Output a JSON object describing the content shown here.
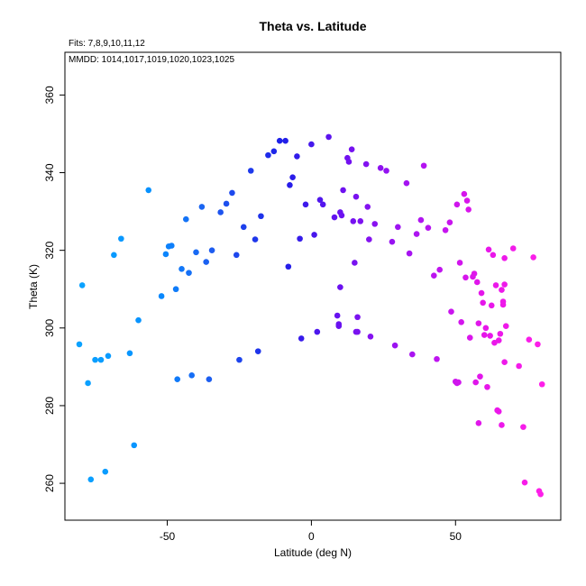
{
  "chart_data": {
    "type": "scatter",
    "title": "Theta vs. Latitude",
    "subtitle": "Fits: 7,8,9,10,11,12",
    "annotation": "MMDD: 1014,1017,1019,1020,1023,1025",
    "xlabel": "Latitude (deg N)",
    "ylabel": "Theta (K)",
    "xlim": [
      -85.5,
      86.5
    ],
    "ylim": [
      250.5,
      371
    ],
    "xticks": [
      -50,
      0,
      50
    ],
    "xtick_labels": [
      "-50",
      "0",
      "50"
    ],
    "yticks": [
      260,
      280,
      300,
      320,
      340,
      360
    ],
    "ytick_labels": [
      "260",
      "280",
      "300",
      "320",
      "340",
      "360"
    ],
    "grid": false,
    "legend": "none",
    "color_scale": {
      "by": "latitude",
      "stops": [
        {
          "lat": -80,
          "color": "#0ba2ff"
        },
        {
          "lat": -55,
          "color": "#0790ff"
        },
        {
          "lat": -35,
          "color": "#1d5df0"
        },
        {
          "lat": -10,
          "color": "#1e1fe8"
        },
        {
          "lat": 10,
          "color": "#6b11f0"
        },
        {
          "lat": 40,
          "color": "#b614f1"
        },
        {
          "lat": 60,
          "color": "#e616ea"
        },
        {
          "lat": 80,
          "color": "#fe1fe9"
        }
      ]
    },
    "points": [
      [
        -80.5,
        295.8
      ],
      [
        -79.5,
        311
      ],
      [
        -77.5,
        285.8
      ],
      [
        -76.5,
        261
      ],
      [
        -75,
        291.8
      ],
      [
        -73,
        291.8
      ],
      [
        -71.5,
        263
      ],
      [
        -70.5,
        292.8
      ],
      [
        -68.5,
        318.8
      ],
      [
        -66,
        323
      ],
      [
        -63,
        293.5
      ],
      [
        -61.5,
        269.8
      ],
      [
        -60,
        302
      ],
      [
        -56.5,
        335.5
      ],
      [
        -52,
        308.2
      ],
      [
        -50.5,
        319
      ],
      [
        -49.5,
        321
      ],
      [
        -48.5,
        321.2
      ],
      [
        -47,
        310
      ],
      [
        -46.5,
        286.8
      ],
      [
        -45,
        315.2
      ],
      [
        -43.5,
        328
      ],
      [
        -42.5,
        314.2
      ],
      [
        -41.5,
        287.8
      ],
      [
        -40,
        319.5
      ],
      [
        -38,
        331.2
      ],
      [
        -36.5,
        317
      ],
      [
        -35.5,
        286.8
      ],
      [
        -34.5,
        320
      ],
      [
        -31.5,
        329.8
      ],
      [
        -29.5,
        332
      ],
      [
        -27.5,
        334.8
      ],
      [
        -26,
        318.8
      ],
      [
        -25,
        291.8
      ],
      [
        -23.5,
        326
      ],
      [
        -21,
        340.5
      ],
      [
        -19.5,
        322.8
      ],
      [
        -18.5,
        294
      ],
      [
        -17.5,
        328.8
      ],
      [
        -15,
        344.5
      ],
      [
        -13,
        345.5
      ],
      [
        -11,
        348.2
      ],
      [
        -9,
        348.2
      ],
      [
        -8,
        315.8
      ],
      [
        -7.5,
        336.8
      ],
      [
        -6.5,
        338.8
      ],
      [
        -5,
        344.2
      ],
      [
        -4,
        323
      ],
      [
        -3.5,
        297.3
      ],
      [
        -2,
        331.8
      ],
      [
        0,
        347.3
      ],
      [
        1,
        324
      ],
      [
        2,
        299
      ],
      [
        3,
        333
      ],
      [
        4,
        331.8
      ],
      [
        6,
        349.2
      ],
      [
        8,
        328.5
      ],
      [
        9,
        303.2
      ],
      [
        9.5,
        301
      ],
      [
        9.5,
        300.5
      ],
      [
        10,
        310.5
      ],
      [
        10,
        329.8
      ],
      [
        10.5,
        329
      ],
      [
        11,
        335.5
      ],
      [
        12.5,
        343.8
      ],
      [
        13,
        342.8
      ],
      [
        14,
        346
      ],
      [
        14.5,
        327.5
      ],
      [
        15,
        316.8
      ],
      [
        15.5,
        333.8
      ],
      [
        15.5,
        299
      ],
      [
        16,
        302.8
      ],
      [
        16,
        299
      ],
      [
        17,
        327.5
      ],
      [
        19,
        342.2
      ],
      [
        19.5,
        331.2
      ],
      [
        20,
        322.8
      ],
      [
        20.5,
        297.8
      ],
      [
        22,
        326.8
      ],
      [
        24,
        341.2
      ],
      [
        26,
        340.5
      ],
      [
        28,
        322.2
      ],
      [
        29,
        295.5
      ],
      [
        30,
        326
      ],
      [
        33,
        337.3
      ],
      [
        34,
        319.2
      ],
      [
        35,
        293.2
      ],
      [
        36.5,
        324.2
      ],
      [
        38,
        327.8
      ],
      [
        39,
        341.8
      ],
      [
        40.5,
        325.8
      ],
      [
        42.5,
        313.5
      ],
      [
        43.5,
        292
      ],
      [
        44.5,
        315
      ],
      [
        46.5,
        325.2
      ],
      [
        48,
        327.2
      ],
      [
        48.5,
        304.2
      ],
      [
        50,
        286.2
      ],
      [
        50.5,
        331.8
      ],
      [
        50.5,
        285.8
      ],
      [
        51,
        286
      ],
      [
        51.5,
        316.8
      ],
      [
        52,
        301.5
      ],
      [
        53,
        334.5
      ],
      [
        53.5,
        313
      ],
      [
        54,
        332.8
      ],
      [
        54.5,
        330.5
      ],
      [
        55,
        297.5
      ],
      [
        56,
        313.2
      ],
      [
        56.5,
        314
      ],
      [
        57,
        286
      ],
      [
        57.5,
        311.8
      ],
      [
        58,
        275.5
      ],
      [
        58,
        301.2
      ],
      [
        58.5,
        287.5
      ],
      [
        59,
        309
      ],
      [
        59.5,
        306.5
      ],
      [
        60,
        298.2
      ],
      [
        60.5,
        300
      ],
      [
        61,
        284.8
      ],
      [
        61.5,
        320.2
      ],
      [
        62,
        298
      ],
      [
        62.5,
        305.8
      ],
      [
        63,
        318.8
      ],
      [
        63.5,
        296.2
      ],
      [
        64,
        311
      ],
      [
        64.5,
        278.8
      ],
      [
        65,
        296.8
      ],
      [
        65,
        278.5
      ],
      [
        65.5,
        298.5
      ],
      [
        66,
        275
      ],
      [
        66,
        309.8
      ],
      [
        66.5,
        306.8
      ],
      [
        66.5,
        306
      ],
      [
        67,
        291.2
      ],
      [
        67,
        311.2
      ],
      [
        67,
        318
      ],
      [
        67.5,
        300.5
      ],
      [
        70,
        320.5
      ],
      [
        72,
        290.2
      ],
      [
        73.5,
        274.5
      ],
      [
        74,
        260.2
      ],
      [
        75.5,
        297
      ],
      [
        77,
        318.2
      ],
      [
        78.5,
        295.8
      ],
      [
        79,
        258
      ],
      [
        79.5,
        257.2
      ],
      [
        80,
        285.5
      ]
    ]
  }
}
